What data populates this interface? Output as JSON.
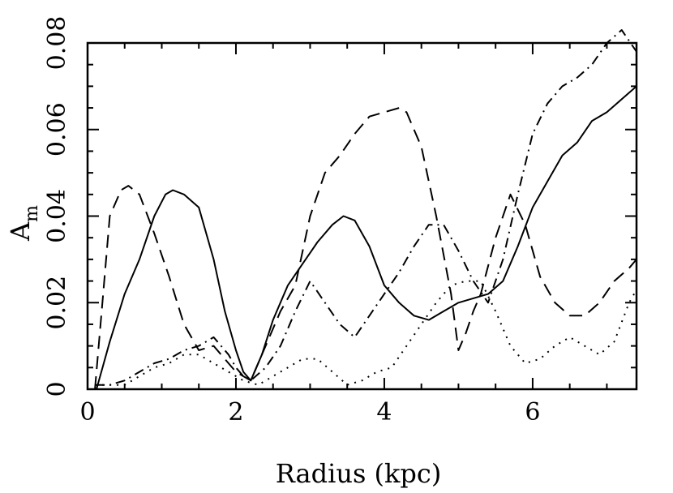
{
  "chart_data": {
    "type": "line",
    "xlabel": "Radius (kpc)",
    "ylabel": "A",
    "ylabel_subscript": "m",
    "xlim": [
      0,
      7.4
    ],
    "ylim": [
      0,
      0.08
    ],
    "xticks": [
      0,
      2,
      4,
      6
    ],
    "yticks": [
      0,
      0.02,
      0.04,
      0.06,
      0.08
    ],
    "xtick_labels": [
      "0",
      "2",
      "4",
      "6"
    ],
    "ytick_labels": [
      "0",
      "0.02",
      "0.04",
      "0.06",
      "0.08"
    ],
    "grid": false,
    "series": [
      {
        "style": "solid",
        "x": [
          0.12,
          0.3,
          0.5,
          0.7,
          0.9,
          1.05,
          1.15,
          1.3,
          1.5,
          1.7,
          1.85,
          2.0,
          2.1,
          2.2,
          2.35,
          2.5,
          2.7,
          2.9,
          3.1,
          3.3,
          3.45,
          3.6,
          3.8,
          4.0,
          4.2,
          4.4,
          4.6,
          4.8,
          5.0,
          5.2,
          5.4,
          5.6,
          5.8,
          6.0,
          6.2,
          6.4,
          6.6,
          6.8,
          7.0,
          7.2,
          7.4
        ],
        "y": [
          0.0,
          0.011,
          0.022,
          0.03,
          0.04,
          0.045,
          0.046,
          0.045,
          0.042,
          0.03,
          0.018,
          0.009,
          0.004,
          0.002,
          0.008,
          0.016,
          0.024,
          0.029,
          0.034,
          0.038,
          0.04,
          0.039,
          0.033,
          0.024,
          0.02,
          0.017,
          0.016,
          0.018,
          0.02,
          0.021,
          0.022,
          0.025,
          0.033,
          0.042,
          0.048,
          0.054,
          0.057,
          0.062,
          0.064,
          0.067,
          0.07
        ]
      },
      {
        "style": "dashed",
        "x": [
          0.1,
          0.2,
          0.3,
          0.45,
          0.55,
          0.7,
          0.9,
          1.1,
          1.3,
          1.5,
          1.7,
          1.9,
          2.0,
          2.1,
          2.2,
          2.4,
          2.6,
          2.8,
          3.0,
          3.2,
          3.4,
          3.6,
          3.8,
          4.0,
          4.2,
          4.3,
          4.5,
          4.7,
          4.9,
          5.0,
          5.1,
          5.2,
          5.3,
          5.5,
          5.7,
          5.9,
          6.1,
          6.3,
          6.5,
          6.7,
          6.9,
          7.1,
          7.3,
          7.4
        ],
        "y": [
          0.0,
          0.02,
          0.04,
          0.046,
          0.047,
          0.045,
          0.036,
          0.026,
          0.015,
          0.009,
          0.01,
          0.006,
          0.004,
          0.003,
          0.002,
          0.01,
          0.018,
          0.024,
          0.04,
          0.05,
          0.054,
          0.059,
          0.063,
          0.064,
          0.065,
          0.064,
          0.056,
          0.04,
          0.022,
          0.009,
          0.013,
          0.018,
          0.022,
          0.035,
          0.045,
          0.038,
          0.026,
          0.02,
          0.017,
          0.017,
          0.02,
          0.025,
          0.028,
          0.03
        ]
      },
      {
        "style": "dotted",
        "x": [
          0.1,
          0.3,
          0.5,
          0.7,
          0.9,
          1.1,
          1.3,
          1.5,
          1.7,
          1.9,
          2.1,
          2.3,
          2.5,
          2.7,
          2.9,
          3.1,
          3.3,
          3.5,
          3.7,
          3.9,
          4.1,
          4.3,
          4.5,
          4.7,
          4.9,
          5.1,
          5.3,
          5.5,
          5.7,
          5.9,
          6.1,
          6.3,
          6.5,
          6.7,
          6.9,
          7.1,
          7.3,
          7.4
        ],
        "y": [
          0.001,
          0.001,
          0.001,
          0.003,
          0.005,
          0.006,
          0.008,
          0.008,
          0.006,
          0.004,
          0.002,
          0.001,
          0.003,
          0.005,
          0.007,
          0.007,
          0.004,
          0.001,
          0.002,
          0.004,
          0.005,
          0.01,
          0.015,
          0.02,
          0.024,
          0.025,
          0.025,
          0.018,
          0.01,
          0.006,
          0.007,
          0.01,
          0.012,
          0.01,
          0.008,
          0.011,
          0.02,
          0.023
        ]
      },
      {
        "style": "dash-dot",
        "x": [
          0.1,
          0.3,
          0.5,
          0.7,
          0.9,
          1.1,
          1.3,
          1.5,
          1.7,
          1.9,
          2.0,
          2.1,
          2.2,
          2.4,
          2.6,
          2.8,
          3.0,
          3.2,
          3.4,
          3.6,
          3.8,
          4.0,
          4.2,
          4.4,
          4.6,
          4.8,
          5.0,
          5.2,
          5.4,
          5.6,
          5.8,
          6.0,
          6.2,
          6.4,
          6.6,
          6.8,
          7.0,
          7.2,
          7.4
        ],
        "y": [
          0.001,
          0.001,
          0.002,
          0.004,
          0.006,
          0.007,
          0.009,
          0.01,
          0.012,
          0.008,
          0.005,
          0.003,
          0.002,
          0.005,
          0.01,
          0.018,
          0.025,
          0.02,
          0.015,
          0.012,
          0.017,
          0.022,
          0.027,
          0.033,
          0.038,
          0.038,
          0.032,
          0.025,
          0.02,
          0.03,
          0.045,
          0.059,
          0.066,
          0.07,
          0.072,
          0.075,
          0.08,
          0.083,
          0.078
        ]
      }
    ]
  }
}
